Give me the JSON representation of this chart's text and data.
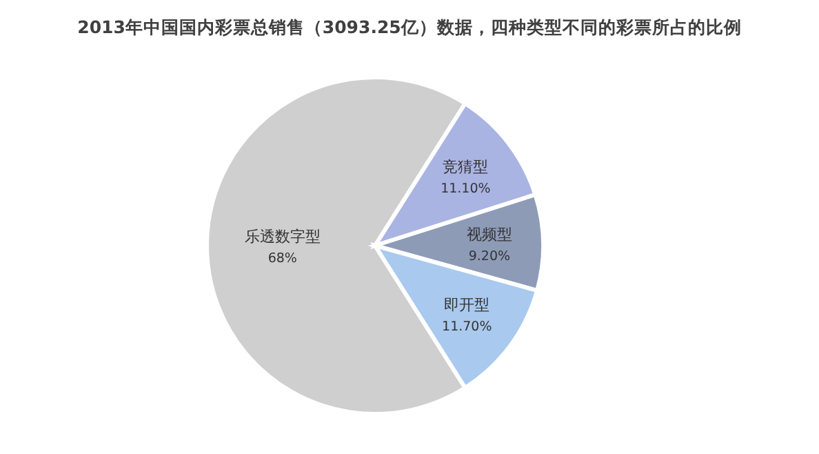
{
  "chart_data": {
    "type": "pie",
    "title": "2013年中国国内彩票总销售（3093.25亿）数据，四种类型不同的彩票所占的比例",
    "categories": [
      "乐透数字型",
      "竞猜型",
      "视频型",
      "即开型"
    ],
    "values": [
      68,
      11.1,
      9.2,
      11.7
    ],
    "colors": [
      "#cfcfcf",
      "#aab4e2",
      "#8e9bb7",
      "#a9c9ee"
    ],
    "value_labels": [
      "68%",
      "11.10%",
      "9.20%",
      "11.70%"
    ]
  }
}
